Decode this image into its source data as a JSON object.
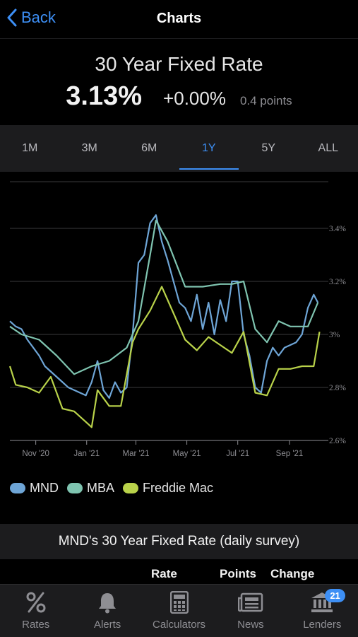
{
  "nav": {
    "back_label": "Back",
    "title": "Charts"
  },
  "header": {
    "title": "30 Year Fixed Rate",
    "rate": "3.13%",
    "change": "+0.00%",
    "points": "0.4 points"
  },
  "ranges": {
    "items": [
      "1M",
      "3M",
      "6M",
      "1Y",
      "5Y",
      "ALL"
    ],
    "active": "1Y"
  },
  "legend": {
    "mnd": "MND",
    "mba": "MBA",
    "freddie": "Freddie Mac"
  },
  "survey": {
    "title": "MND's 30 Year Fixed Rate (daily survey)"
  },
  "table": {
    "col_rate": "Rate",
    "col_points": "Points",
    "col_change": "Change"
  },
  "tabs": {
    "rates": "Rates",
    "alerts": "Alerts",
    "calculators": "Calculators",
    "news": "News",
    "lenders": "Lenders",
    "lenders_badge": "21"
  },
  "colors": {
    "accent": "#3d8ff5",
    "mnd": "#6ea5d6",
    "mba": "#7fc4b0",
    "freddie": "#b9d24a"
  },
  "chart_data": {
    "type": "line",
    "x_tick_labels": [
      "Nov '20",
      "Jan '21",
      "Mar '21",
      "May '21",
      "Jul '21",
      "Sep '21"
    ],
    "y_tick_labels": [
      "3.4%",
      "3.2%",
      "3%",
      "2.8%",
      "2.6%"
    ],
    "ylim": [
      2.6,
      3.4
    ],
    "x_range": [
      "2020-10-01",
      "2021-10-15"
    ],
    "series": [
      {
        "name": "MND",
        "color": "#6ea5d6",
        "x": [
          "2020-10-01",
          "2020-10-08",
          "2020-10-15",
          "2020-10-22",
          "2020-10-29",
          "2020-11-05",
          "2020-11-12",
          "2020-11-19",
          "2020-11-26",
          "2020-12-03",
          "2020-12-10",
          "2020-12-17",
          "2020-12-24",
          "2020-12-31",
          "2021-01-07",
          "2021-01-14",
          "2021-01-21",
          "2021-01-28",
          "2021-02-04",
          "2021-02-11",
          "2021-02-18",
          "2021-02-25",
          "2021-03-04",
          "2021-03-11",
          "2021-03-18",
          "2021-03-25",
          "2021-04-01",
          "2021-04-08",
          "2021-04-15",
          "2021-04-22",
          "2021-04-29",
          "2021-05-06",
          "2021-05-13",
          "2021-05-20",
          "2021-05-27",
          "2021-06-03",
          "2021-06-10",
          "2021-06-17",
          "2021-06-24",
          "2021-07-01",
          "2021-07-08",
          "2021-07-15",
          "2021-07-22",
          "2021-07-29",
          "2021-08-05",
          "2021-08-12",
          "2021-08-19",
          "2021-08-26",
          "2021-09-02",
          "2021-09-09",
          "2021-09-16",
          "2021-09-23",
          "2021-09-30",
          "2021-10-05"
        ],
        "values": [
          3.05,
          3.03,
          3.02,
          2.98,
          2.95,
          2.92,
          2.88,
          2.86,
          2.84,
          2.82,
          2.8,
          2.79,
          2.78,
          2.77,
          2.82,
          2.9,
          2.79,
          2.76,
          2.82,
          2.78,
          2.8,
          3.0,
          3.27,
          3.3,
          3.42,
          3.45,
          3.35,
          3.28,
          3.2,
          3.12,
          3.1,
          3.05,
          3.15,
          3.02,
          3.12,
          3.0,
          3.13,
          3.05,
          3.2,
          3.2,
          3.0,
          2.92,
          2.8,
          2.78,
          2.9,
          2.95,
          2.92,
          2.95,
          2.96,
          2.97,
          3.0,
          3.1,
          3.15,
          3.12
        ]
      },
      {
        "name": "MBA",
        "color": "#7fc4b0",
        "x": [
          "2020-10-01",
          "2020-10-15",
          "2020-11-05",
          "2020-11-26",
          "2020-12-17",
          "2021-01-07",
          "2021-01-28",
          "2021-02-18",
          "2021-03-04",
          "2021-03-18",
          "2021-03-25",
          "2021-04-08",
          "2021-04-29",
          "2021-05-20",
          "2021-06-10",
          "2021-06-24",
          "2021-07-08",
          "2021-07-22",
          "2021-08-05",
          "2021-08-19",
          "2021-09-02",
          "2021-09-23",
          "2021-10-05"
        ],
        "values": [
          3.03,
          3.0,
          2.98,
          2.92,
          2.85,
          2.88,
          2.9,
          2.95,
          3.05,
          3.3,
          3.43,
          3.35,
          3.18,
          3.18,
          3.19,
          3.19,
          3.2,
          3.02,
          2.97,
          3.05,
          3.03,
          3.03,
          3.12
        ]
      },
      {
        "name": "Freddie Mac",
        "color": "#b9d24a",
        "x": [
          "2020-10-01",
          "2020-10-08",
          "2020-10-22",
          "2020-11-05",
          "2020-11-19",
          "2020-12-03",
          "2020-12-17",
          "2020-12-31",
          "2021-01-07",
          "2021-01-14",
          "2021-01-28",
          "2021-02-11",
          "2021-02-25",
          "2021-03-04",
          "2021-03-18",
          "2021-04-01",
          "2021-04-15",
          "2021-04-29",
          "2021-05-13",
          "2021-05-27",
          "2021-06-10",
          "2021-06-24",
          "2021-07-08",
          "2021-07-22",
          "2021-08-05",
          "2021-08-19",
          "2021-09-02",
          "2021-09-16",
          "2021-09-30",
          "2021-10-07"
        ],
        "values": [
          2.88,
          2.81,
          2.8,
          2.78,
          2.84,
          2.72,
          2.71,
          2.67,
          2.65,
          2.79,
          2.73,
          2.73,
          2.97,
          3.02,
          3.09,
          3.18,
          3.08,
          2.98,
          2.94,
          2.99,
          2.96,
          2.93,
          3.01,
          2.78,
          2.77,
          2.87,
          2.87,
          2.88,
          2.88,
          3.01
        ]
      }
    ]
  }
}
